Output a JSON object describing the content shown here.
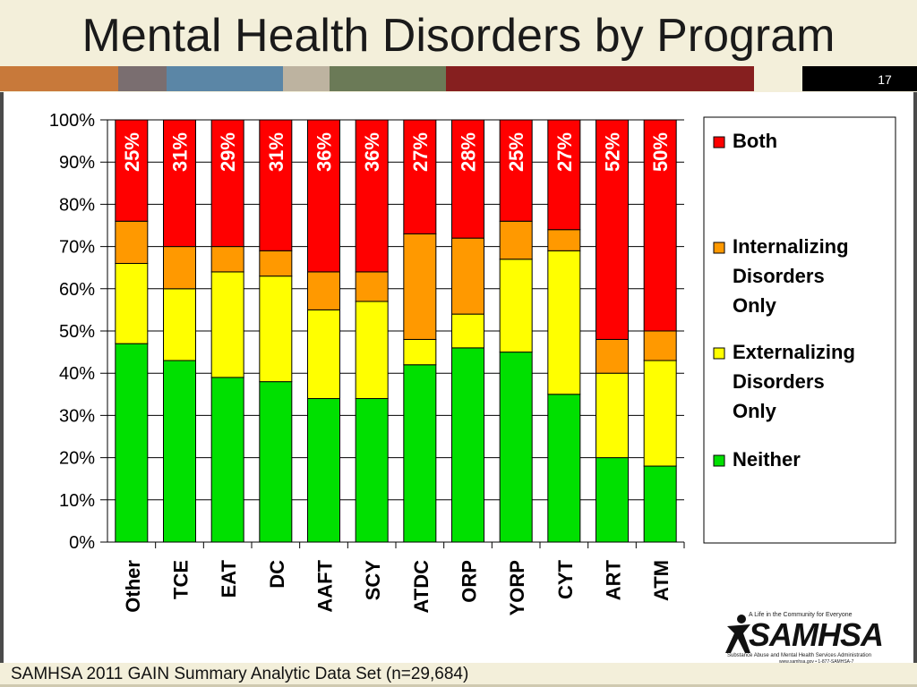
{
  "slide": {
    "title": "Mental Health Disorders by Program",
    "number": "17",
    "source_note": "SAMHSA 2011 GAIN Summary Analytic Data Set (n=29,684)",
    "band_colors": [
      "#c8793a",
      "#7a6e70",
      "#5b86a6",
      "#bdb3a0",
      "#6b7a57",
      "#861f1f",
      "#f3efda",
      "#000000"
    ]
  },
  "logo": {
    "tagline": "A Life in the Community for Everyone",
    "name": "SAMHSA",
    "subtitle": "Substance Abuse and Mental Health Services Administration",
    "contact": "www.samhsa.gov • 1-877-SAMHSA-7"
  },
  "chart_data": {
    "type": "bar",
    "stacked": true,
    "categories": [
      "Other",
      "TCE",
      "EAT",
      "DC",
      "AAFT",
      "SCY",
      "ATDC",
      "ORP",
      "YORP",
      "CYT",
      "ART",
      "ATM"
    ],
    "series": [
      {
        "name": "Neither",
        "color": "#00e000",
        "values": [
          47,
          43,
          39,
          38,
          34,
          34,
          42,
          46,
          45,
          35,
          20,
          18
        ]
      },
      {
        "name": "Externalizing Disorders Only",
        "color": "#ffff00",
        "values": [
          19,
          17,
          25,
          25,
          21,
          23,
          6,
          8,
          22,
          34,
          20,
          25
        ]
      },
      {
        "name": "Internalizing Disorders Only",
        "color": "#ff9900",
        "values": [
          10,
          10,
          6,
          6,
          9,
          7,
          25,
          18,
          9,
          5,
          8,
          7
        ]
      },
      {
        "name": "Both",
        "color": "#ff0000",
        "values": [
          25,
          31,
          29,
          31,
          36,
          36,
          27,
          28,
          25,
          27,
          52,
          50
        ]
      }
    ],
    "data_labels": [
      "25%",
      "31%",
      "29%",
      "31%",
      "36%",
      "36%",
      "27%",
      "28%",
      "25%",
      "27%",
      "52%",
      "50%"
    ],
    "y_ticks": [
      "0%",
      "10%",
      "20%",
      "30%",
      "40%",
      "50%",
      "60%",
      "70%",
      "80%",
      "90%",
      "100%"
    ],
    "ylim": [
      0,
      100
    ],
    "legend_order": [
      "Both",
      "Internalizing Disorders Only",
      "Externalizing Disorders Only",
      "Neither"
    ],
    "legend_lines": [
      [
        "Both"
      ],
      [
        "Internalizing",
        "Disorders",
        "Only"
      ],
      [
        "Externalizing",
        "Disorders",
        "Only"
      ],
      [
        "Neither"
      ]
    ],
    "legend_position": "right",
    "grid": true
  }
}
